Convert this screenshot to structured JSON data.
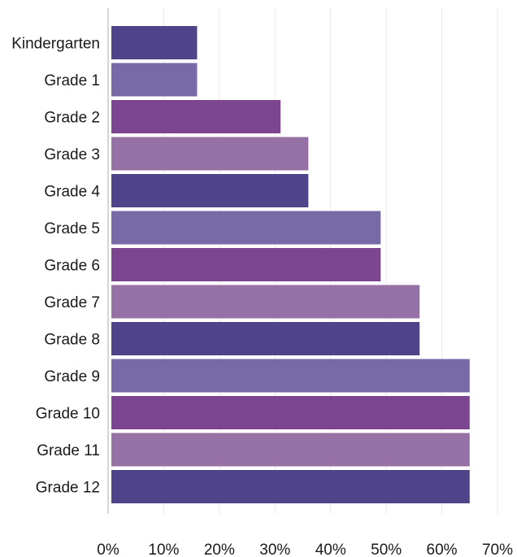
{
  "chart_data": {
    "type": "bar",
    "orientation": "horizontal",
    "categories": [
      "Kindergarten",
      "Grade 1",
      "Grade 2",
      "Grade 3",
      "Grade 4",
      "Grade 5",
      "Grade 6",
      "Grade 7",
      "Grade 8",
      "Grade 9",
      "Grade 10",
      "Grade 11",
      "Grade 12"
    ],
    "values": [
      16,
      16,
      31,
      36,
      36,
      49,
      49,
      56,
      56,
      65,
      65,
      65,
      65
    ],
    "unit": "%",
    "title": "",
    "xlabel": "",
    "ylabel": "",
    "xlim": [
      0,
      70
    ],
    "x_ticks": [
      "0%",
      "10%",
      "20%",
      "30%",
      "40%",
      "50%",
      "60%",
      "70%"
    ],
    "grid": "vertical",
    "legend": "none",
    "bar_colors": [
      "#4f448a",
      "#776aa7",
      "#7b4590",
      "#9571a6"
    ]
  }
}
